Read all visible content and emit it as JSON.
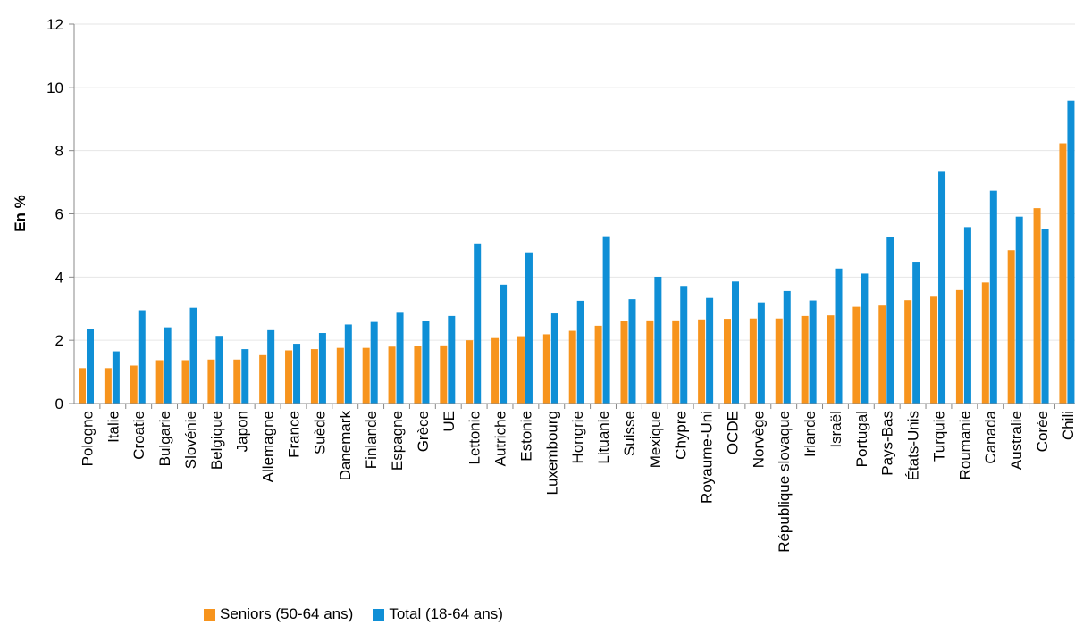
{
  "chart_data": {
    "type": "bar",
    "ylabel": "En %",
    "xlabel": "",
    "ylim": [
      0,
      12
    ],
    "yticks": [
      0,
      2,
      4,
      6,
      8,
      10,
      12
    ],
    "grid": true,
    "legend_position": "bottom-left",
    "categories": [
      "Pologne",
      "Italie",
      "Croatie",
      "Bulgarie",
      "Slovénie",
      "Belgique",
      "Japon",
      "Allemagne",
      "France",
      "Suède",
      "Danemark",
      "Finlande",
      "Espagne",
      "Grèce",
      "UE",
      "Lettonie",
      "Autriche",
      "Estonie",
      "Luxembourg",
      "Hongrie",
      "Lituanie",
      "Suisse",
      "Mexique",
      "Chypre",
      "Royaume-Uni",
      "OCDE",
      "Norvège",
      "République slovaque",
      "Irlande",
      "Israël",
      "Portugal",
      "Pays-Bas",
      "États-Unis",
      "Turquie",
      "Roumanie",
      "Canada",
      "Australie",
      "Corée",
      "Chili"
    ],
    "series": [
      {
        "name": "Seniors (50-64 ans)",
        "color": "#F7941D",
        "values": [
          1.12,
          1.12,
          1.2,
          1.37,
          1.37,
          1.39,
          1.39,
          1.53,
          1.68,
          1.72,
          1.76,
          1.76,
          1.8,
          1.83,
          1.84,
          2.0,
          2.07,
          2.13,
          2.19,
          2.3,
          2.46,
          2.6,
          2.63,
          2.63,
          2.66,
          2.68,
          2.69,
          2.69,
          2.77,
          2.79,
          3.06,
          3.1,
          3.27,
          3.38,
          3.59,
          3.83,
          4.85,
          6.18,
          8.23
        ]
      },
      {
        "name": "Total (18-64 ans)",
        "color": "#0F8FD6",
        "values": [
          2.35,
          1.65,
          2.95,
          2.41,
          3.03,
          2.14,
          1.72,
          2.32,
          1.89,
          2.23,
          2.5,
          2.58,
          2.87,
          2.62,
          2.77,
          5.06,
          3.76,
          4.78,
          2.85,
          3.25,
          5.29,
          3.3,
          4.01,
          3.72,
          3.34,
          3.86,
          3.2,
          3.56,
          3.26,
          4.27,
          4.11,
          5.26,
          4.46,
          7.33,
          5.58,
          6.73,
          5.91,
          5.51,
          9.58
        ]
      }
    ]
  }
}
